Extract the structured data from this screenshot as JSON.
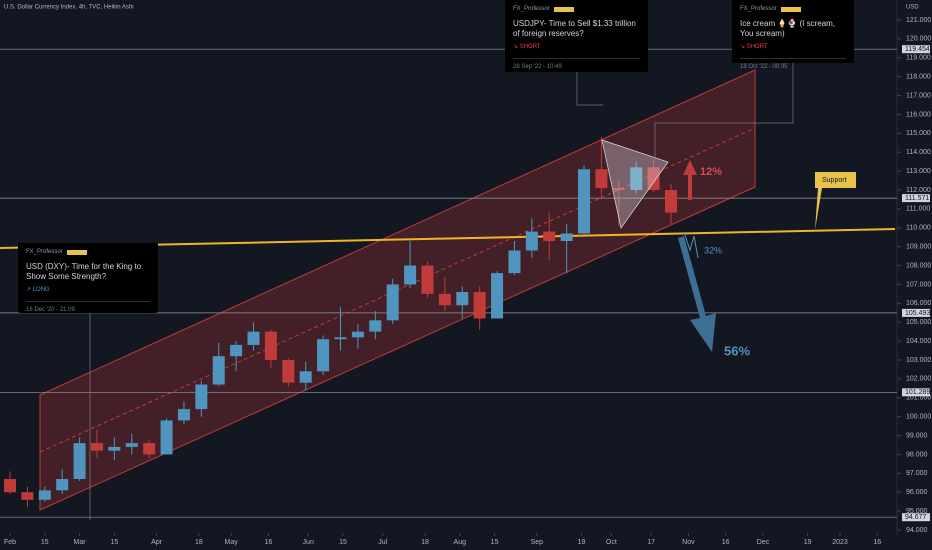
{
  "chart_data": {
    "type": "candlestick",
    "title": "U.S. Dollar Currency Index, 4h, TVC, Heikin Ashi",
    "y_axis_label": "USD",
    "colors": {
      "up": "#4f95c0",
      "down": "#c23b3b"
    },
    "x": [
      "2022-02-01",
      "2022-02-08",
      "2022-02-15",
      "2022-02-22",
      "2022-03-01",
      "2022-03-08",
      "2022-03-15",
      "2022-03-22",
      "2022-03-29",
      "2022-04-05",
      "2022-04-12",
      "2022-04-19",
      "2022-04-26",
      "2022-05-03",
      "2022-05-10",
      "2022-05-17",
      "2022-05-24",
      "2022-05-31",
      "2022-06-07",
      "2022-06-14",
      "2022-06-21",
      "2022-06-28",
      "2022-07-05",
      "2022-07-12",
      "2022-07-19",
      "2022-07-26",
      "2022-08-02",
      "2022-08-09",
      "2022-08-16",
      "2022-08-23",
      "2022-08-30",
      "2022-09-06",
      "2022-09-13",
      "2022-09-20",
      "2022-09-27",
      "2022-10-04",
      "2022-10-11",
      "2022-10-18",
      "2022-10-25"
    ],
    "open": [
      96.7,
      96.0,
      95.6,
      96.1,
      96.7,
      98.6,
      98.2,
      98.4,
      98.6,
      98.0,
      99.8,
      100.4,
      101.7,
      103.2,
      103.8,
      104.5,
      103.0,
      101.8,
      102.4,
      104.1,
      104.2,
      104.5,
      105.1,
      107.0,
      108.0,
      106.5,
      105.9,
      106.6,
      105.2,
      107.6,
      108.8,
      109.8,
      109.3,
      109.7,
      113.1,
      112.1,
      112.0,
      113.2,
      112.0
    ],
    "high": [
      97.1,
      96.3,
      96.3,
      97.2,
      98.9,
      99.3,
      98.9,
      99.1,
      98.8,
      99.9,
      100.8,
      101.9,
      103.9,
      104.0,
      105.0,
      104.6,
      103.1,
      102.9,
      104.3,
      105.8,
      104.9,
      105.6,
      107.3,
      109.3,
      108.2,
      107.4,
      106.9,
      106.9,
      107.7,
      109.3,
      110.5,
      110.8,
      110.2,
      113.3,
      114.8,
      112.5,
      113.5,
      113.6,
      112.3
    ],
    "low": [
      95.9,
      95.2,
      95.5,
      95.9,
      96.6,
      97.8,
      97.7,
      98.0,
      97.8,
      98.0,
      99.6,
      100.0,
      101.6,
      102.4,
      103.5,
      102.6,
      101.6,
      101.4,
      102.2,
      103.5,
      103.6,
      104.1,
      104.9,
      106.8,
      106.3,
      105.6,
      105.2,
      104.6,
      105.2,
      107.5,
      108.4,
      108.3,
      107.6,
      109.6,
      111.5,
      110.1,
      111.8,
      111.9,
      110.2
    ],
    "close": [
      96.0,
      95.6,
      96.1,
      96.7,
      98.6,
      98.2,
      98.4,
      98.6,
      98.0,
      99.8,
      100.4,
      101.7,
      103.2,
      103.8,
      104.5,
      103.0,
      101.8,
      102.4,
      104.1,
      104.2,
      104.5,
      105.1,
      107.0,
      108.0,
      106.5,
      105.9,
      106.6,
      105.2,
      107.6,
      108.8,
      109.8,
      109.3,
      109.7,
      113.1,
      112.1,
      112.0,
      113.2,
      112.0,
      110.8
    ],
    "xlim": [
      "2022-02-01",
      "2023-01-20"
    ],
    "xticks": [
      {
        "value": "2022-02-01",
        "label": "Feb"
      },
      {
        "value": "2022-02-15",
        "label": "15"
      },
      {
        "value": "2022-03-01",
        "label": "Mar"
      },
      {
        "value": "2022-03-15",
        "label": "15"
      },
      {
        "value": "2022-04-01",
        "label": "Apr"
      },
      {
        "value": "2022-04-18",
        "label": "18"
      },
      {
        "value": "2022-05-01",
        "label": "May"
      },
      {
        "value": "2022-05-16",
        "label": "16"
      },
      {
        "value": "2022-06-01",
        "label": "Jun"
      },
      {
        "value": "2022-06-15",
        "label": "15"
      },
      {
        "value": "2022-07-01",
        "label": "Jul"
      },
      {
        "value": "2022-07-18",
        "label": "18"
      },
      {
        "value": "2022-08-01",
        "label": "Aug"
      },
      {
        "value": "2022-08-15",
        "label": "15"
      },
      {
        "value": "2022-09-01",
        "label": "Sep"
      },
      {
        "value": "2022-09-19",
        "label": "19"
      },
      {
        "value": "2022-10-01",
        "label": "Oct"
      },
      {
        "value": "2022-10-17",
        "label": "17"
      },
      {
        "value": "2022-11-01",
        "label": "Nov"
      },
      {
        "value": "2022-11-16",
        "label": "16"
      },
      {
        "value": "2022-12-01",
        "label": "Dec"
      },
      {
        "value": "2022-12-19",
        "label": "19"
      },
      {
        "value": "2023-01-01",
        "label": "2023"
      },
      {
        "value": "2023-01-16",
        "label": "16"
      }
    ],
    "ylim": [
      94,
      121
    ],
    "yticks": [
      {
        "value": 94,
        "label": "94.000"
      },
      {
        "value": 95,
        "label": "95.000"
      },
      {
        "value": 96,
        "label": "96.000"
      },
      {
        "value": 97,
        "label": "97.000"
      },
      {
        "value": 98,
        "label": "98.000"
      },
      {
        "value": 99,
        "label": "99.000"
      },
      {
        "value": 100,
        "label": "100.000"
      },
      {
        "value": 101,
        "label": "101.000"
      },
      {
        "value": 102,
        "label": "102.000"
      },
      {
        "value": 103,
        "label": "103.000"
      },
      {
        "value": 104,
        "label": "104.000"
      },
      {
        "value": 105,
        "label": "105.000"
      },
      {
        "value": 106,
        "label": "106.000"
      },
      {
        "value": 107,
        "label": "107.000"
      },
      {
        "value": 108,
        "label": "108.000"
      },
      {
        "value": 109,
        "label": "109.000"
      },
      {
        "value": 110,
        "label": "110.000"
      },
      {
        "value": 111,
        "label": "111.000"
      },
      {
        "value": 112,
        "label": "112.000"
      },
      {
        "value": 113,
        "label": "113.000"
      },
      {
        "value": 114,
        "label": "114.000"
      },
      {
        "value": 115,
        "label": "115.000"
      },
      {
        "value": 116,
        "label": "116.000"
      },
      {
        "value": 117,
        "label": "117.000"
      },
      {
        "value": 118,
        "label": "118.000"
      },
      {
        "value": 119,
        "label": "119.000"
      },
      {
        "value": 120,
        "label": "120.000"
      },
      {
        "value": 121,
        "label": "121.000"
      }
    ],
    "price_levels": [
      {
        "value": 119.454,
        "label": "119.454"
      },
      {
        "value": 111.571,
        "label": "111.571"
      },
      {
        "value": 105.493,
        "label": "105.493"
      },
      {
        "value": 101.289,
        "label": "101.289"
      },
      {
        "value": 94.677,
        "label": "94.677"
      }
    ],
    "annotations": {
      "support": "Support",
      "up_move": "12%",
      "down_move_small": "32%",
      "down_move_large": "56%",
      "ideas": [
        {
          "author": "FX_Professor",
          "title": "USDJPY- Time to Sell  $1.33 trillion of foreign reserves?",
          "direction": "↘ SHORT",
          "date": "28 Sep '22 - 10:49"
        },
        {
          "author": "FX_Professor",
          "title": "Ice cream 🍦🍨 (I scream, You scream)",
          "direction": "↘ SHORT",
          "date": "18 Oct '22 - 00:35"
        },
        {
          "author": "FX_Professor",
          "title": "USD (DXY)- Time for the King to Show Some Strength?",
          "direction": "↗ LONG",
          "date": "16 Dec '20 - 21:09"
        }
      ]
    }
  }
}
